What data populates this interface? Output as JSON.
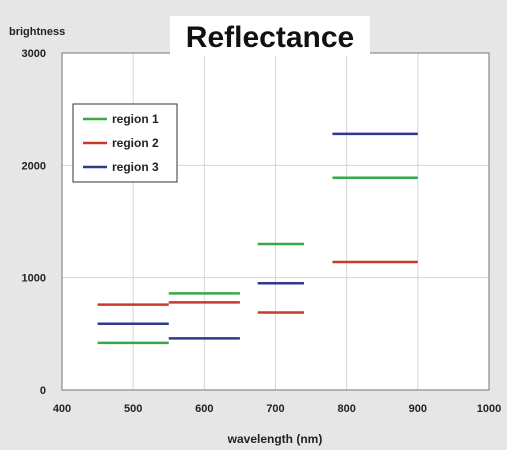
{
  "chart_data": {
    "type": "line",
    "title": "Reflectance",
    "xlabel": "wavelength (nm)",
    "ylabel": "brightness",
    "xlim": [
      400,
      1000
    ],
    "ylim": [
      0,
      3000
    ],
    "x_ticks": [
      "400",
      "500",
      "600",
      "700",
      "800",
      "900",
      "1000"
    ],
    "y_ticks": [
      "0",
      "1000",
      "2000",
      "3000"
    ],
    "grid": true,
    "legend_position": "top-left",
    "series": [
      {
        "name": "region 1",
        "color": "#3aa84a",
        "segments": [
          {
            "x": [
              450,
              550
            ],
            "y": 420
          },
          {
            "x": [
              550,
              650
            ],
            "y": 860
          },
          {
            "x": [
              675,
              740
            ],
            "y": 1300
          },
          {
            "x": [
              780,
              900
            ],
            "y": 1890
          }
        ]
      },
      {
        "name": "region 2",
        "color": "#c9392b",
        "segments": [
          {
            "x": [
              450,
              550
            ],
            "y": 760
          },
          {
            "x": [
              550,
              650
            ],
            "y": 780
          },
          {
            "x": [
              675,
              740
            ],
            "y": 690
          },
          {
            "x": [
              780,
              900
            ],
            "y": 1140
          }
        ]
      },
      {
        "name": "region 3",
        "color": "#2e3a8c",
        "segments": [
          {
            "x": [
              450,
              550
            ],
            "y": 590
          },
          {
            "x": [
              550,
              650
            ],
            "y": 460
          },
          {
            "x": [
              675,
              740
            ],
            "y": 950
          },
          {
            "x": [
              780,
              900
            ],
            "y": 2280
          }
        ]
      }
    ]
  }
}
